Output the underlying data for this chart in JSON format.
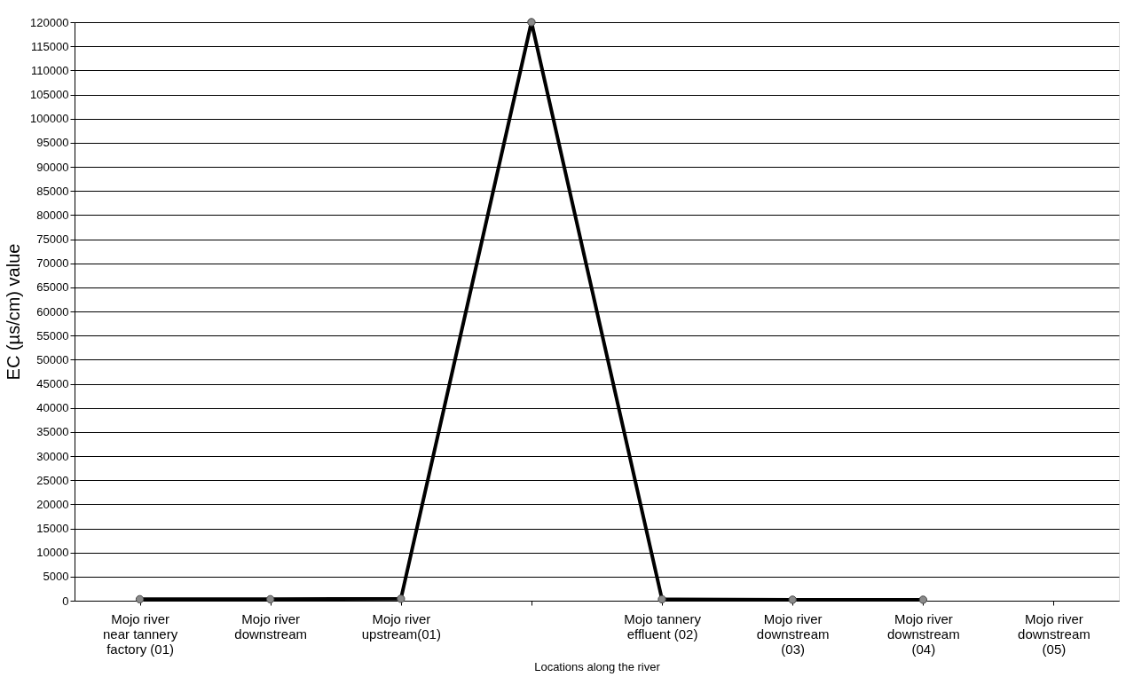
{
  "chart_data": {
    "type": "line",
    "xlabel": "Locations along the river",
    "ylabel": "EC (µs/cm) value",
    "categories": [
      "Mojo river\nnear tannery\nfactory (01)",
      "Mojo river\ndownstream",
      "Mojo river\nupstream(01)",
      null,
      "Mojo tannery\neffluent  (02)",
      "Mojo river\ndownstream\n(03)",
      "Mojo river\ndownstream\n(04)",
      "Mojo river\ndownstream\n(05)"
    ],
    "series": [
      {
        "color": "#000000",
        "values": [
          300,
          300,
          400,
          120000,
          300,
          200,
          200,
          null
        ]
      }
    ],
    "ylim": [
      0,
      120000
    ],
    "yticks": [
      0,
      5000,
      10000,
      15000,
      20000,
      25000,
      30000,
      35000,
      40000,
      45000,
      50000,
      55000,
      60000,
      65000,
      70000,
      75000,
      80000,
      85000,
      90000,
      95000,
      100000,
      105000,
      110000,
      115000,
      120000
    ],
    "grid": "y",
    "marker": "circle",
    "line_style": "solid"
  }
}
